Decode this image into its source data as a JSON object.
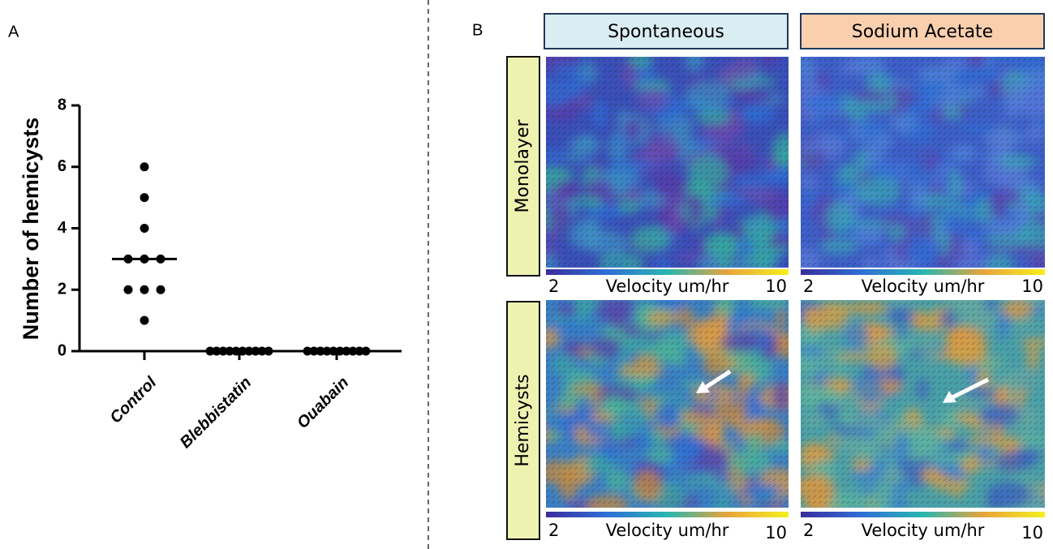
{
  "chart_data": {
    "type": "dotplot",
    "ylabel": "Number of hemicysts",
    "categories": [
      "Control",
      "Blebbistatin",
      "Ouabain"
    ],
    "values": [
      [
        6,
        5,
        4,
        3,
        3,
        3,
        2,
        2,
        2,
        1
      ],
      [
        0,
        0,
        0,
        0,
        0,
        0,
        0,
        0,
        0,
        0
      ],
      [
        0,
        0,
        0,
        0,
        0,
        0,
        0,
        0,
        0,
        0
      ]
    ],
    "medians": [
      3,
      0,
      0
    ],
    "ylim": [
      0,
      8
    ],
    "yticks": [
      0,
      2,
      4,
      6,
      8
    ],
    "color": "#000000"
  },
  "figure": {
    "panel_labels": [
      "A",
      "B"
    ],
    "columns": [
      "Spontaneous",
      "Sodium Acetate"
    ],
    "rows": [
      "Monolayer",
      "Hemicysts"
    ],
    "colorbars": [
      {
        "min": 2,
        "label": "Velocity um/hr",
        "max": 10
      },
      {
        "min": 2,
        "label": "Velocity um/hr",
        "max": 10
      },
      {
        "min": 2,
        "label": "Velocity um/hr",
        "max": 10
      },
      {
        "min": 2,
        "label": "Velocity um/hr",
        "max": 10
      }
    ]
  }
}
